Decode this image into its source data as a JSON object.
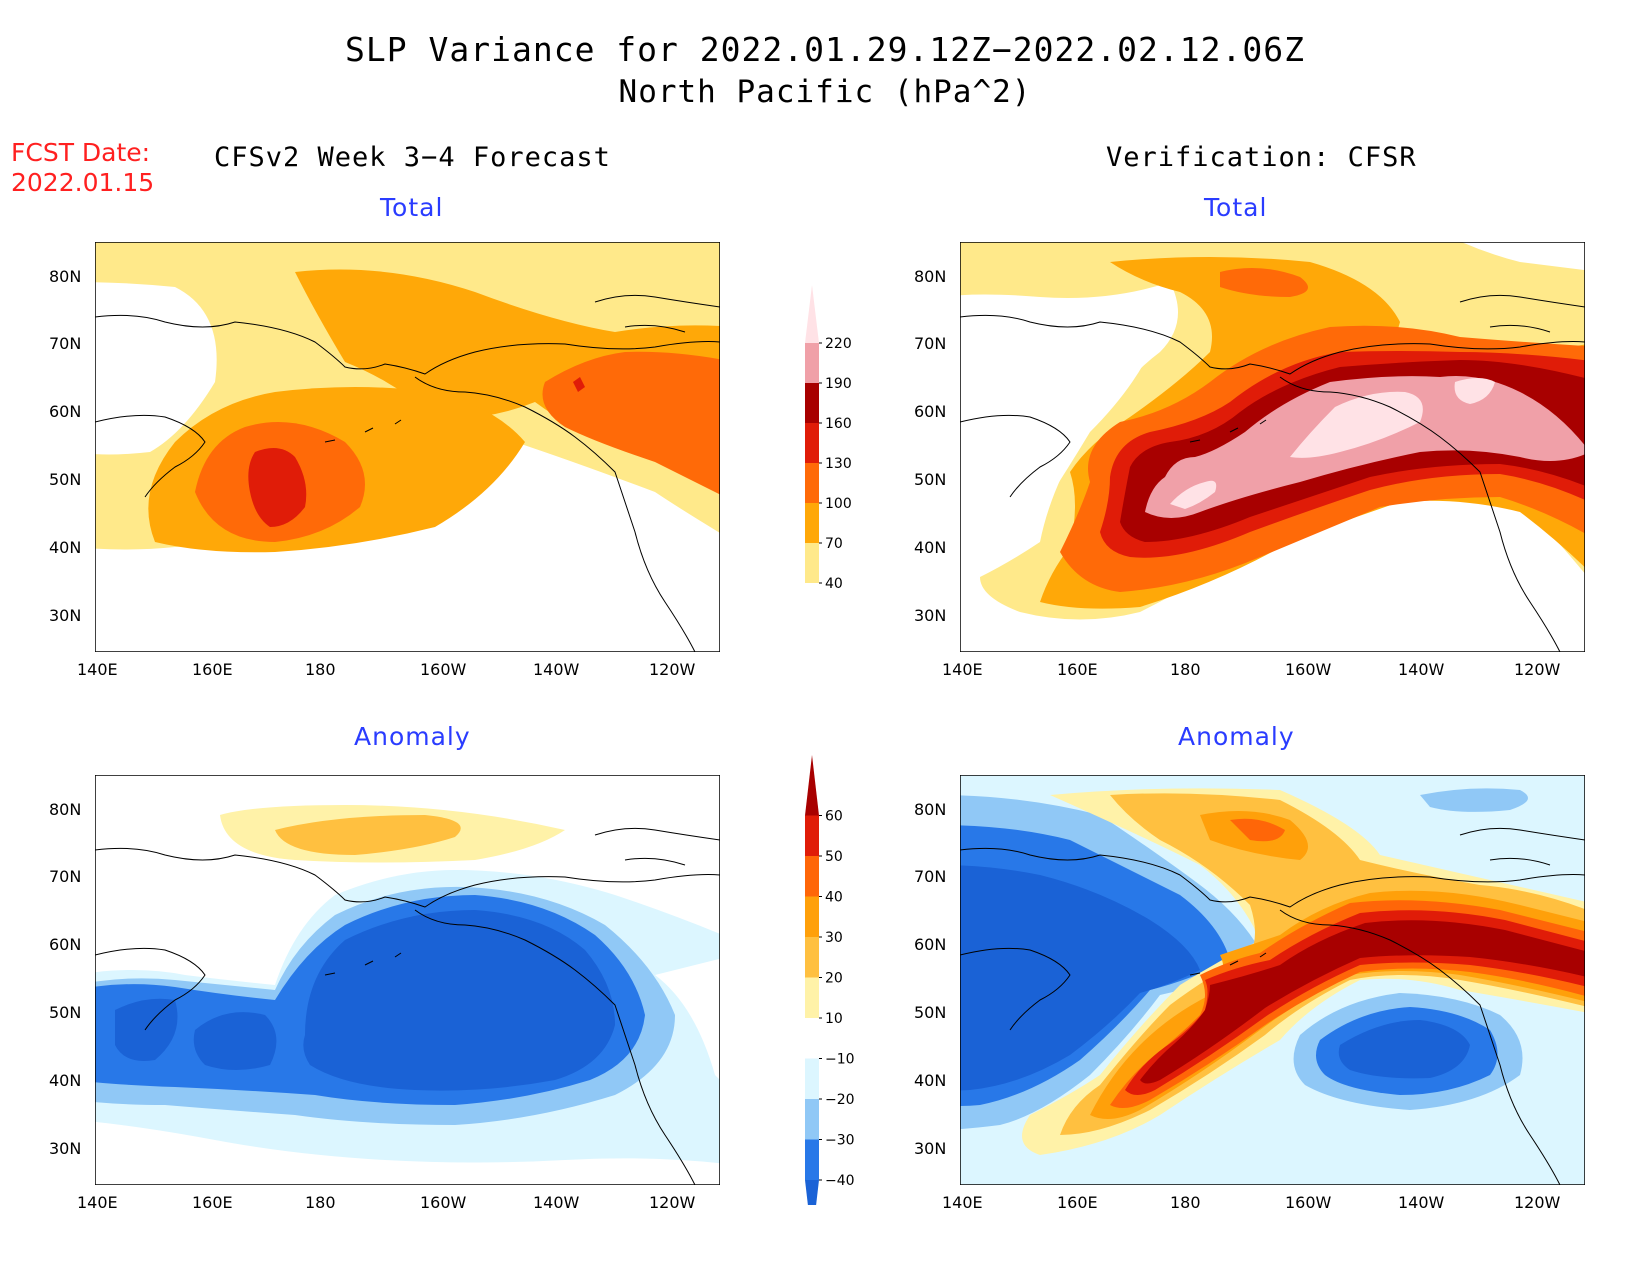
{
  "title": {
    "line1": "SLP Variance for 2022.01.29.12Z−2022.02.12.06Z",
    "line2": "North Pacific (hPa^2)"
  },
  "fcst": {
    "label": "FCST Date:",
    "date": "2022.01.15"
  },
  "columns": {
    "left": "CFSv2 Week 3−4 Forecast",
    "right": "Verification: CFSR"
  },
  "panel_titles": {
    "forecast_total": "Total",
    "verification_total": "Total",
    "forecast_anomaly": "Anomaly",
    "verification_anomaly": "Anomaly"
  },
  "axes": {
    "lat_labels": [
      "80N",
      "70N",
      "60N",
      "50N",
      "40N",
      "30N"
    ],
    "lon_labels": [
      "140E",
      "160E",
      "180",
      "160W",
      "140W",
      "120W"
    ]
  },
  "colorbars": {
    "total": {
      "levels": [
        "40",
        "70",
        "100",
        "130",
        "160",
        "190",
        "220"
      ],
      "colors": [
        "#ffffff",
        "#ffe98a",
        "#ffa808",
        "#ff6a08",
        "#e01c08",
        "#a80000",
        "#f0a0a8",
        "#ffe2e6"
      ]
    },
    "anomaly": {
      "levels": [
        "−40",
        "−30",
        "−20",
        "−10",
        "10",
        "20",
        "30",
        "40",
        "50",
        "60"
      ],
      "colors": [
        "#1a62d6",
        "#2878e8",
        "#90c8f6",
        "#dcf6ff",
        "#ffffff",
        "#fff2a8",
        "#ffc040",
        "#ffa00a",
        "#ff6608",
        "#e01c08",
        "#a80000"
      ]
    }
  },
  "colors": {
    "fcst_text": "#ff2020",
    "panel_title": "#2a3cff"
  }
}
